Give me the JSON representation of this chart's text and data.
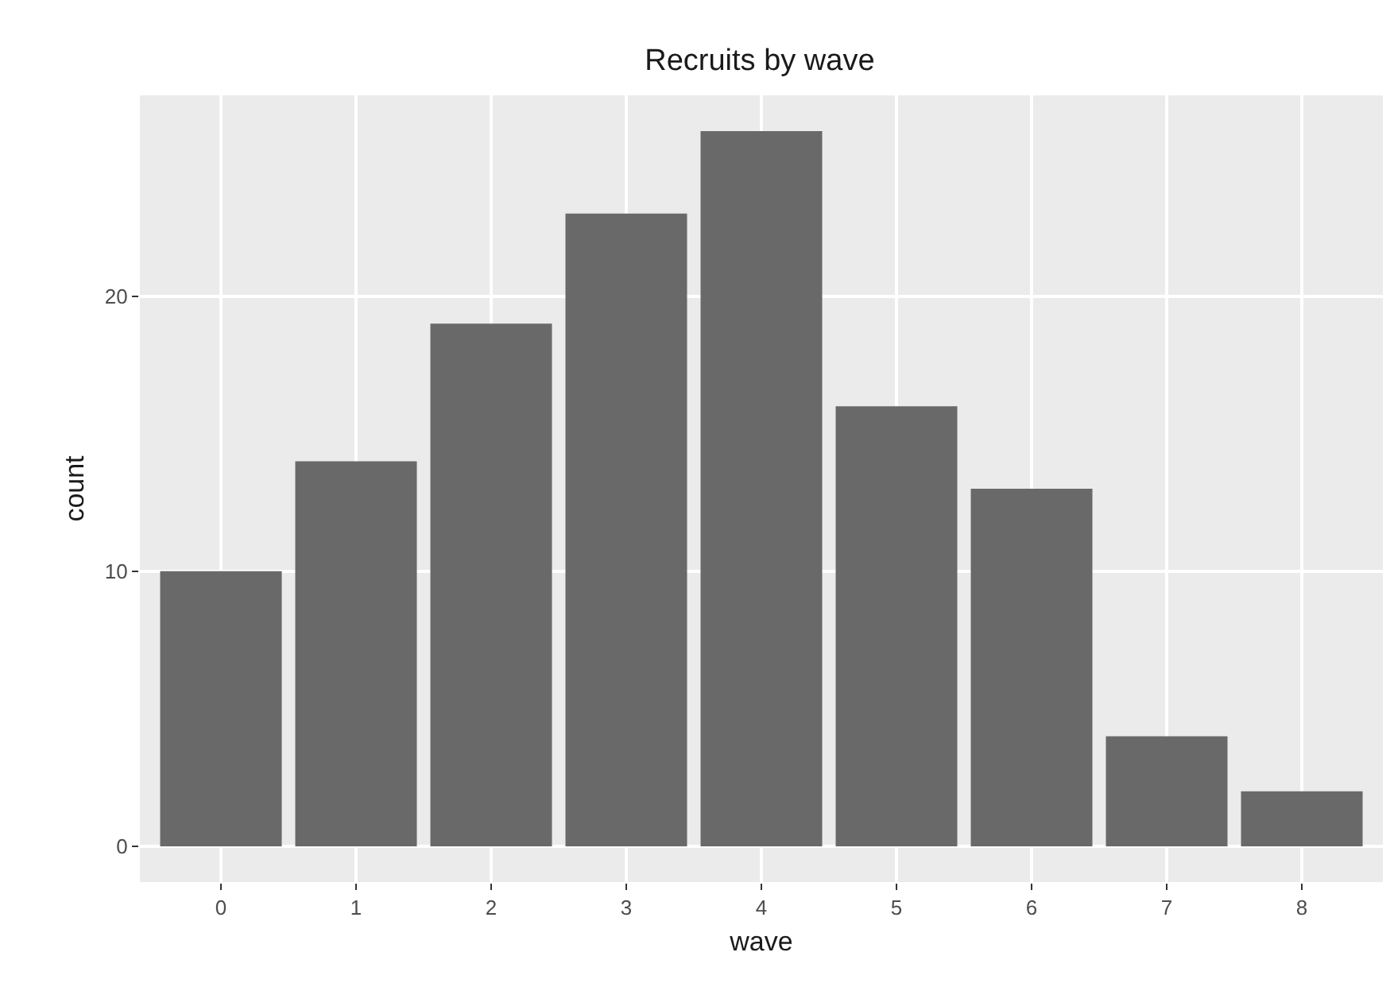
{
  "chart_data": {
    "type": "bar",
    "title": "Recruits by wave",
    "xlabel": "wave",
    "ylabel": "count",
    "categories": [
      "0",
      "1",
      "2",
      "3",
      "4",
      "5",
      "6",
      "7",
      "8"
    ],
    "values": [
      10,
      14,
      19,
      23,
      26,
      16,
      13,
      4,
      2
    ],
    "color": "#696969",
    "ylim": [
      -1.3,
      27.3
    ],
    "yticks": [
      0,
      10,
      20
    ],
    "grid": true
  }
}
